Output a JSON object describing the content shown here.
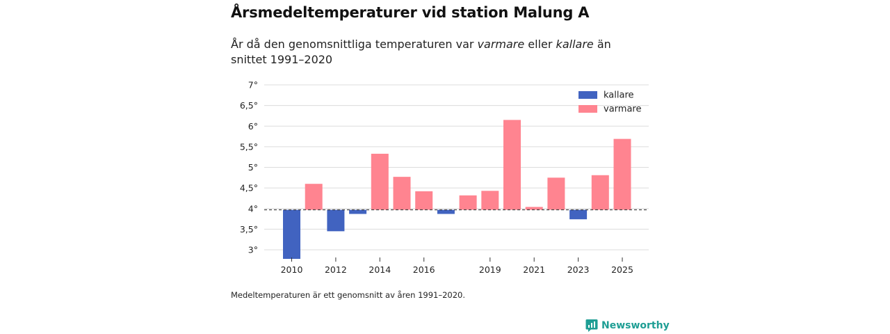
{
  "title": "Årsmedeltemperaturer vid station Malung A",
  "subtitle": {
    "part1": "År då den genomsnittliga temperaturen var ",
    "warmer_word": "varmare",
    "part2": " eller ",
    "colder_word": "kallare",
    "part3": " än snittet 1991–2020"
  },
  "footnote": "Medeltemperaturen är ett genomsnitt av åren 1991–2020.",
  "brand": "Newsworthy",
  "colors": {
    "colder": "#4163c0",
    "warmer": "#ff8490",
    "brand": "#1e9e94"
  },
  "chart_data": {
    "type": "bar",
    "title": "Årsmedeltemperaturer vid station Malung A",
    "baseline": 3.97,
    "ylim": [
      2.8,
      7
    ],
    "yticks": [
      {
        "value": 3,
        "label": "3°"
      },
      {
        "value": 3.5,
        "label": "3,5°"
      },
      {
        "value": 4,
        "label": "4°"
      },
      {
        "value": 4.5,
        "label": "4,5°"
      },
      {
        "value": 5,
        "label": "5°"
      },
      {
        "value": 5.5,
        "label": "5,5°"
      },
      {
        "value": 6,
        "label": "6°"
      },
      {
        "value": 6.5,
        "label": "6,5°"
      },
      {
        "value": 7,
        "label": "7°"
      }
    ],
    "xticks": [
      "2010",
      "2012",
      "2014",
      "2016",
      "2019",
      "2021",
      "2023",
      "2025"
    ],
    "legend": [
      {
        "key": "colder",
        "label": "kallare"
      },
      {
        "key": "warmer",
        "label": "varmare"
      }
    ],
    "legend_position": "top-right",
    "x": [
      2010,
      2011,
      2012,
      2013,
      2014,
      2015,
      2016,
      2017,
      2018,
      2019,
      2020,
      2021,
      2022,
      2023,
      2024,
      2025
    ],
    "values": [
      2.78,
      4.6,
      3.45,
      3.87,
      5.33,
      4.77,
      4.42,
      3.87,
      4.32,
      4.43,
      6.15,
      4.04,
      4.75,
      3.74,
      4.81,
      5.69
    ]
  }
}
